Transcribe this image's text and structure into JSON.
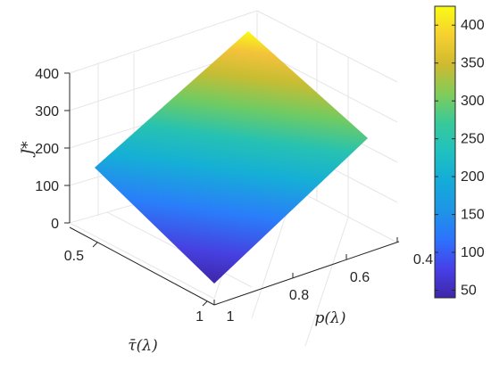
{
  "chart_data": {
    "type": "surface",
    "title": "",
    "xlabel": "p(λ)",
    "ylabel": "τ̄(λ)",
    "zlabel": "J*",
    "x_ticks": [
      "0.4",
      "0.6",
      "0.8",
      "1"
    ],
    "y_ticks": [
      "0.5",
      "1"
    ],
    "z_ticks": [
      "0",
      "100",
      "200",
      "300",
      "400"
    ],
    "xlim": [
      0.4,
      1
    ],
    "ylim": [
      0.4,
      1
    ],
    "zlim": [
      0,
      400
    ],
    "surface_corners": [
      {
        "p": 0.4,
        "tau": 0.4,
        "J": 425
      },
      {
        "p": 1.0,
        "tau": 0.4,
        "J": 140
      },
      {
        "p": 0.4,
        "tau": 1.0,
        "J": 248
      },
      {
        "p": 1.0,
        "tau": 1.0,
        "J": 40
      }
    ],
    "colormap": "parula",
    "colorbar": {
      "ticks": [
        "50",
        "100",
        "150",
        "200",
        "250",
        "300",
        "350",
        "400"
      ],
      "range": [
        40,
        425
      ]
    },
    "grid": true,
    "colors": {
      "low": "#3e26a8",
      "mid": "#1fb8c3",
      "high": "#f9fb15"
    }
  }
}
